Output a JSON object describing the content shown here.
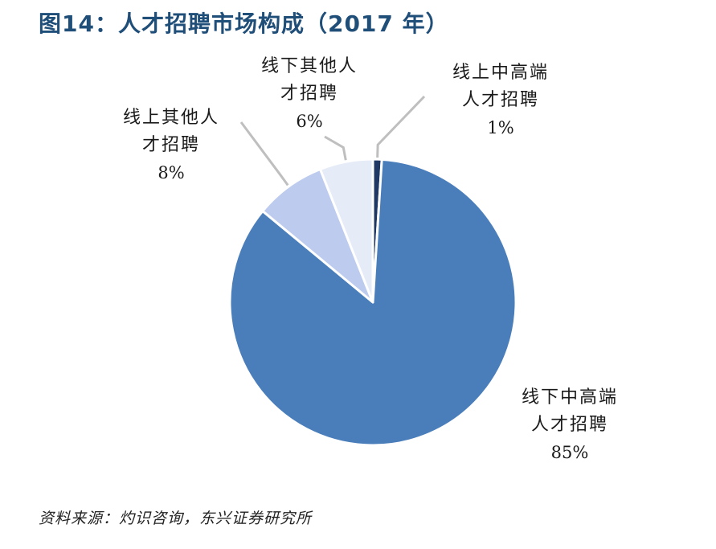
{
  "title": "图14：人才招聘市场构成（2017 年）",
  "source": "资料来源：灼识咨询，东兴证券研究所",
  "colors": {
    "title": "#1f4e79",
    "offline_high_end": "#4a7ebb",
    "online_high_end": "#1f3864",
    "online_other": "#bccbee",
    "offline_other": "#e5ebf7",
    "leader_line": "#bfbfbf"
  },
  "chart_data": {
    "type": "pie",
    "title": "图14：人才招聘市场构成（2017 年）",
    "slices": [
      {
        "key": "online_high_end",
        "label_line1": "线上中高端",
        "label_line2": "人才招聘",
        "percent_label": "1%",
        "value": 1
      },
      {
        "key": "offline_high_end",
        "label_line1": "线下中高端",
        "label_line2": "人才招聘",
        "percent_label": "85%",
        "value": 85
      },
      {
        "key": "online_other",
        "label_line1": "线上其他人",
        "label_line2": "才招聘",
        "percent_label": "8%",
        "value": 8
      },
      {
        "key": "offline_other",
        "label_line1": "线下其他人",
        "label_line2": "才招聘",
        "percent_label": "6%",
        "value": 6
      }
    ],
    "legend": "none"
  }
}
